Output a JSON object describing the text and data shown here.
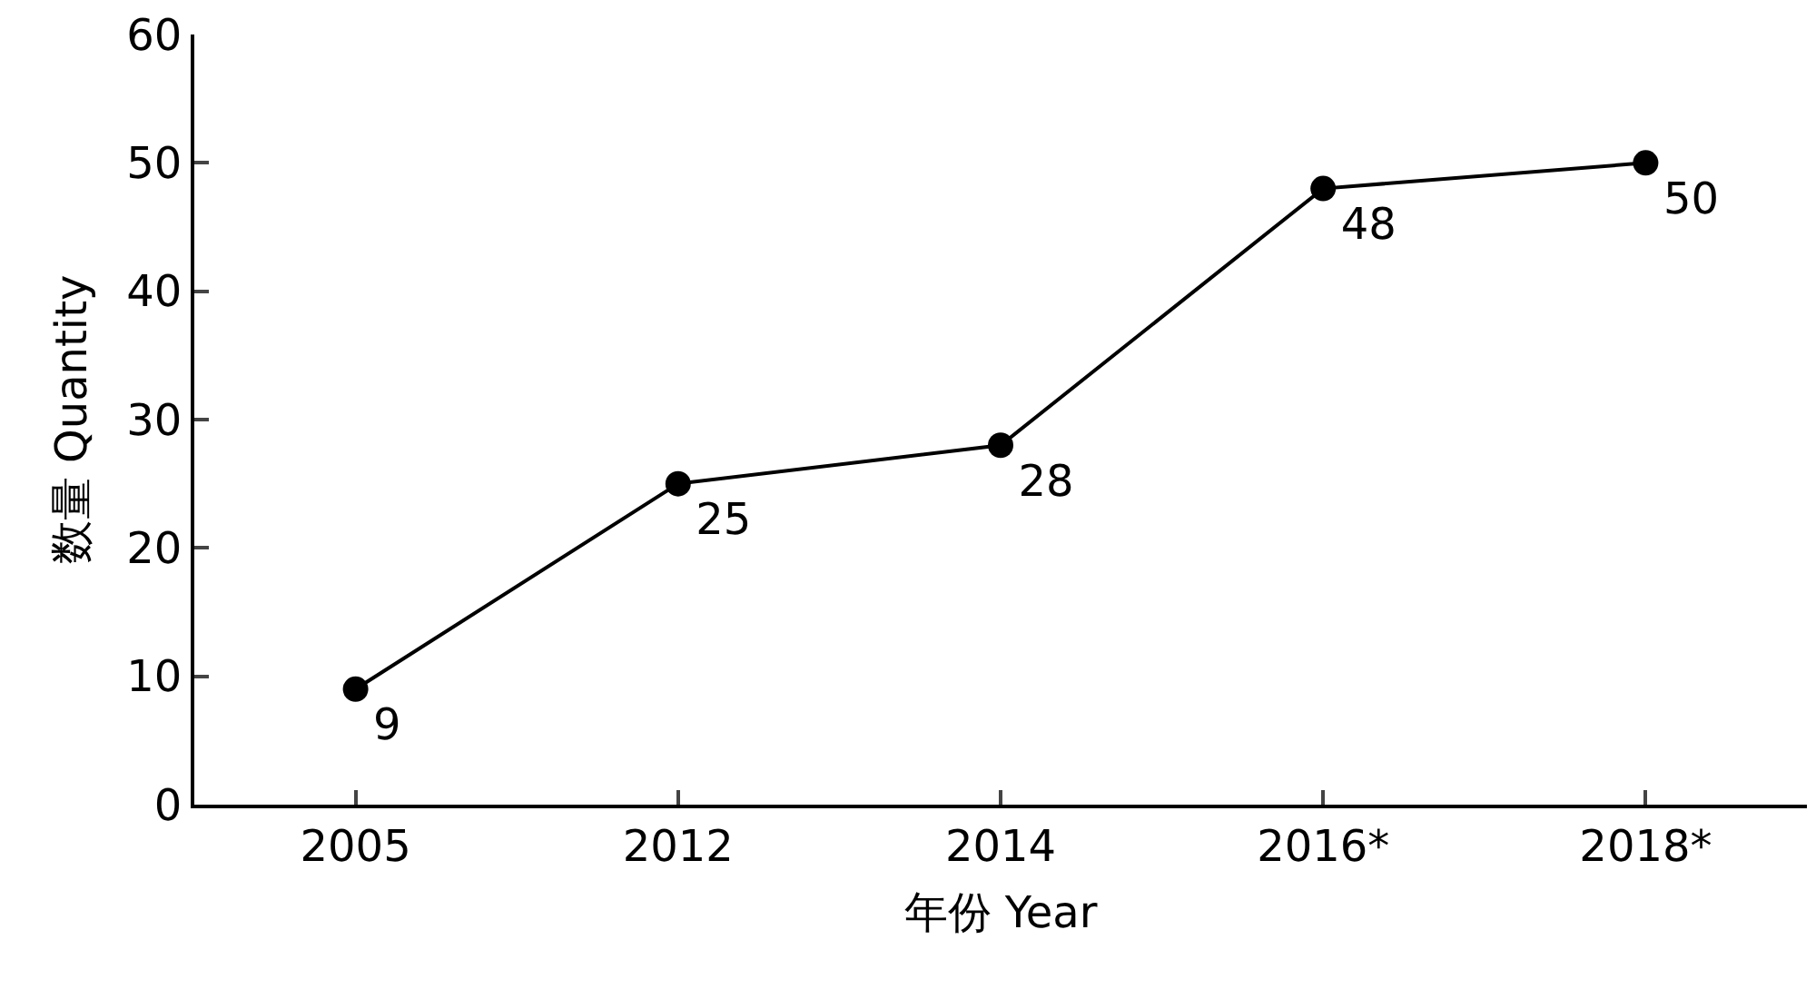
{
  "chart_data": {
    "type": "line",
    "xlabel": "年份 Year",
    "ylabel": "数量 Quantity",
    "categories": [
      "2005",
      "2012",
      "2014",
      "2016*",
      "2018*"
    ],
    "series": [
      {
        "color": "#000000",
        "values": [
          9,
          25,
          28,
          48,
          50
        ]
      }
    ],
    "ylim": [
      0,
      60
    ],
    "yticks": [
      0,
      10,
      20,
      30,
      40,
      50,
      60
    ],
    "data_labels": true,
    "marker": "circle",
    "line_style": "solid"
  }
}
